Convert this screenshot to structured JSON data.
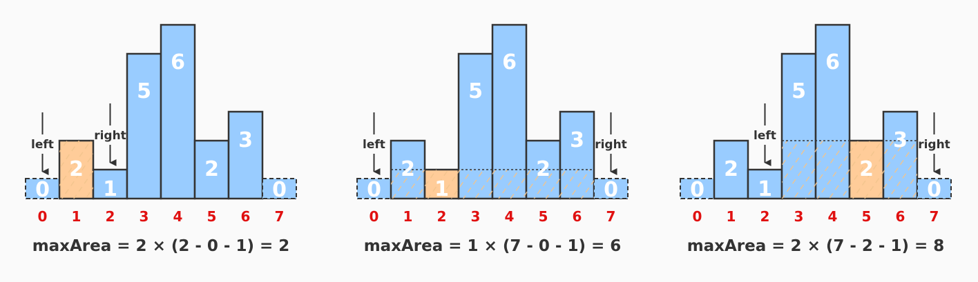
{
  "colors": {
    "bar": "#99ccff",
    "highlight": "#ffcc99",
    "outline": "#333333",
    "index": "#e01010",
    "hatch": "#f2c48d"
  },
  "panels": [
    {
      "heights": [
        0,
        2,
        1,
        5,
        6,
        2,
        3,
        0
      ],
      "highlight": 1,
      "left": 0,
      "right": 2,
      "area": {
        "from": 1,
        "to": 1,
        "height": 2
      },
      "pointer_labels": {
        "left": "left",
        "right": "right"
      },
      "formula": "maxArea = 2 × (2 - 0 - 1) = 2"
    },
    {
      "heights": [
        0,
        2,
        1,
        5,
        6,
        2,
        3,
        0
      ],
      "highlight": 2,
      "left": 0,
      "right": 7,
      "area": {
        "from": 1,
        "to": 6,
        "height": 1
      },
      "pointer_labels": {
        "left": "left",
        "right": "right"
      },
      "formula": "maxArea = 1 × (7 - 0 - 1) = 6"
    },
    {
      "heights": [
        0,
        2,
        1,
        5,
        6,
        2,
        3,
        0
      ],
      "highlight": 5,
      "left": 2,
      "right": 7,
      "area": {
        "from": 3,
        "to": 6,
        "height": 2
      },
      "pointer_labels": {
        "left": "left",
        "right": "right"
      },
      "formula": "maxArea = 2 × (7 - 2 - 1) = 8"
    }
  ],
  "indices": [
    "0",
    "1",
    "2",
    "3",
    "4",
    "5",
    "6",
    "7"
  ]
}
